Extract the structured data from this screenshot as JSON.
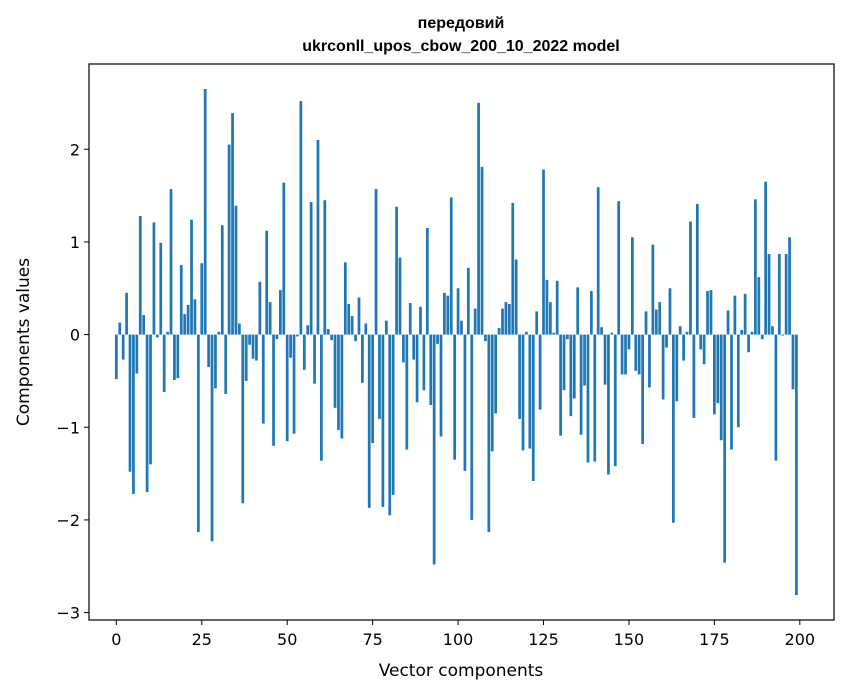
{
  "chart_data": {
    "type": "bar",
    "title_line1": "передовий",
    "title_line2": "ukrconll_upos_cbow_200_10_2022 model",
    "xlabel": "Vector components",
    "ylabel": "Components values",
    "xlim": [
      -8,
      210
    ],
    "ylim": [
      -3.08,
      2.92
    ],
    "xticks": [
      0,
      25,
      50,
      75,
      100,
      125,
      150,
      175,
      200
    ],
    "xtick_labels": [
      "0",
      "25",
      "50",
      "75",
      "100",
      "125",
      "150",
      "175",
      "200"
    ],
    "yticks": [
      -3,
      -2,
      -1,
      0,
      1,
      2
    ],
    "ytick_labels": [
      "−3",
      "−2",
      "−1",
      "0",
      "1",
      "2"
    ],
    "bar_color": "#1f77b4",
    "bar_width": 0.8,
    "values": [
      -0.48,
      0.13,
      -0.27,
      0.45,
      -1.48,
      -1.72,
      -0.42,
      1.28,
      0.21,
      -1.7,
      -1.4,
      1.21,
      -0.03,
      0.99,
      -0.62,
      0.03,
      1.57,
      -0.49,
      -0.47,
      0.75,
      0.22,
      0.32,
      1.24,
      0.38,
      -2.13,
      0.77,
      2.65,
      -0.35,
      -2.23,
      -0.58,
      0.03,
      1.18,
      -0.64,
      2.05,
      2.39,
      1.39,
      0.12,
      -1.82,
      -0.5,
      -0.11,
      -0.26,
      -0.28,
      0.57,
      -0.96,
      1.12,
      0.35,
      -1.2,
      -0.05,
      0.48,
      1.64,
      -1.15,
      -0.25,
      -1.07,
      -0.02,
      2.52,
      -0.38,
      0.1,
      1.43,
      -0.53,
      2.1,
      -1.36,
      1.45,
      0.06,
      -0.06,
      -0.79,
      -1.03,
      -1.12,
      0.78,
      0.33,
      0.2,
      -0.07,
      0.4,
      -0.52,
      0.12,
      -1.87,
      -1.17,
      1.57,
      -0.91,
      -1.86,
      0.15,
      -1.95,
      -1.73,
      1.38,
      0.83,
      -0.3,
      -1.24,
      0.34,
      -0.27,
      -0.73,
      0.3,
      -0.6,
      1.15,
      -0.76,
      -2.48,
      -0.1,
      -1.1,
      0.45,
      0.42,
      1.48,
      -1.35,
      0.5,
      0.15,
      -1.47,
      0.72,
      -2.0,
      0.28,
      2.5,
      1.81,
      -0.07,
      -2.13,
      -1.26,
      -0.85,
      0.07,
      0.28,
      0.35,
      0.33,
      1.42,
      0.81,
      -0.91,
      -1.25,
      0.03,
      -1.23,
      -1.58,
      0.25,
      -0.81,
      1.78,
      0.59,
      0.35,
      0.02,
      0.58,
      -1.09,
      -0.6,
      -0.05,
      -0.88,
      -0.69,
      0.51,
      -1.08,
      -0.55,
      -1.38,
      0.47,
      -1.37,
      1.59,
      0.08,
      -0.54,
      -1.51,
      0.02,
      -1.42,
      1.44,
      -0.43,
      -0.43,
      -0.16,
      1.05,
      -0.39,
      -0.43,
      -1.18,
      0.25,
      -0.57,
      0.97,
      0.27,
      0.35,
      -0.7,
      -0.14,
      0.5,
      -2.03,
      -0.72,
      0.09,
      -0.28,
      0.03,
      1.22,
      -0.9,
      1.41,
      -0.16,
      -0.32,
      0.47,
      0.48,
      -0.86,
      -0.74,
      -1.14,
      -2.46,
      0.26,
      -1.24,
      0.42,
      -1.0,
      0.05,
      0.44,
      -0.19,
      0.03,
      1.46,
      0.62,
      -0.05,
      1.65,
      0.87,
      0.09,
      -1.36,
      0.87,
      -0.01,
      0.87,
      1.05,
      -0.59,
      -2.81
    ]
  }
}
